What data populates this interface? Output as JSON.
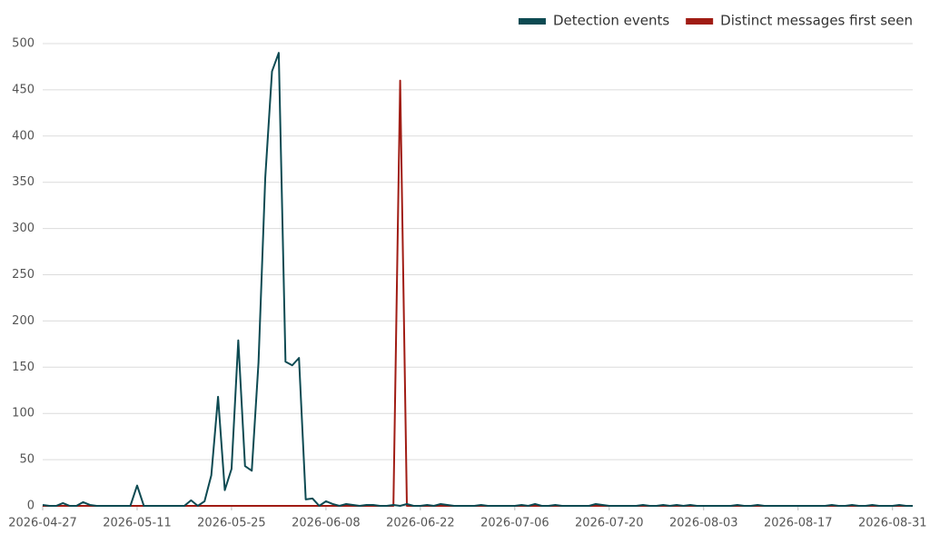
{
  "chart_data": {
    "type": "line",
    "x": [
      "2026-04-27",
      "2026-04-28",
      "2026-04-29",
      "2026-04-30",
      "2026-05-01",
      "2026-05-02",
      "2026-05-03",
      "2026-05-04",
      "2026-05-05",
      "2026-05-06",
      "2026-05-07",
      "2026-05-08",
      "2026-05-09",
      "2026-05-10",
      "2026-05-11",
      "2026-05-12",
      "2026-05-13",
      "2026-05-14",
      "2026-05-15",
      "2026-05-16",
      "2026-05-17",
      "2026-05-18",
      "2026-05-19",
      "2026-05-20",
      "2026-05-21",
      "2026-05-22",
      "2026-05-23",
      "2026-05-24",
      "2026-05-25",
      "2026-05-26",
      "2026-05-27",
      "2026-05-28",
      "2026-05-29",
      "2026-05-30",
      "2026-05-31",
      "2026-06-01",
      "2026-06-02",
      "2026-06-03",
      "2026-06-04",
      "2026-06-05",
      "2026-06-06",
      "2026-06-07",
      "2026-06-08",
      "2026-06-09",
      "2026-06-10",
      "2026-06-11",
      "2026-06-12",
      "2026-06-13",
      "2026-06-14",
      "2026-06-15",
      "2026-06-16",
      "2026-06-17",
      "2026-06-18",
      "2026-06-19",
      "2026-06-20",
      "2026-06-21",
      "2026-06-22",
      "2026-06-23",
      "2026-06-24",
      "2026-06-25",
      "2026-06-26",
      "2026-06-27",
      "2026-06-28",
      "2026-06-29",
      "2026-06-30",
      "2026-07-01",
      "2026-07-02",
      "2026-07-03",
      "2026-07-04",
      "2026-07-05",
      "2026-07-06",
      "2026-07-07",
      "2026-07-08",
      "2026-07-09",
      "2026-07-10",
      "2026-07-11",
      "2026-07-12",
      "2026-07-13",
      "2026-07-14",
      "2026-07-15",
      "2026-07-16",
      "2026-07-17",
      "2026-07-18",
      "2026-07-19",
      "2026-07-20",
      "2026-07-21",
      "2026-07-22",
      "2026-07-23",
      "2026-07-24",
      "2026-07-25",
      "2026-07-26",
      "2026-07-27",
      "2026-07-28",
      "2026-07-29",
      "2026-07-30",
      "2026-07-31",
      "2026-08-01",
      "2026-08-02",
      "2026-08-03",
      "2026-08-04",
      "2026-08-05",
      "2026-08-06",
      "2026-08-07",
      "2026-08-08",
      "2026-08-09",
      "2026-08-10",
      "2026-08-11",
      "2026-08-12",
      "2026-08-13",
      "2026-08-14",
      "2026-08-15",
      "2026-08-16",
      "2026-08-17",
      "2026-08-18",
      "2026-08-19",
      "2026-08-20",
      "2026-08-21",
      "2026-08-22",
      "2026-08-23",
      "2026-08-24",
      "2026-08-25",
      "2026-08-26",
      "2026-08-27",
      "2026-08-28",
      "2026-08-29",
      "2026-08-30",
      "2026-08-31",
      "2026-09-01",
      "2026-09-02",
      "2026-09-03"
    ],
    "series": [
      {
        "name": "Detection events",
        "color": "#0d4a52",
        "values": [
          1,
          0,
          0,
          3,
          0,
          0,
          4,
          1,
          0,
          0,
          0,
          0,
          0,
          0,
          22,
          0,
          0,
          0,
          0,
          0,
          0,
          0,
          6,
          0,
          5,
          33,
          118,
          17,
          40,
          179,
          43,
          38,
          155,
          355,
          470,
          490,
          156,
          152,
          160,
          7,
          8,
          0,
          5,
          2,
          0,
          2,
          1,
          0,
          1,
          1,
          0,
          0,
          1,
          0,
          2,
          0,
          0,
          1,
          0,
          2,
          1,
          0,
          0,
          0,
          0,
          1,
          0,
          0,
          0,
          0,
          0,
          1,
          0,
          2,
          0,
          0,
          1,
          0,
          0,
          0,
          0,
          0,
          2,
          1,
          0,
          0,
          0,
          0,
          0,
          1,
          0,
          0,
          1,
          0,
          1,
          0,
          1,
          0,
          0,
          0,
          0,
          0,
          0,
          1,
          0,
          0,
          1,
          0,
          0,
          0,
          0,
          0,
          0,
          0,
          0,
          0,
          0,
          1,
          0,
          0,
          1,
          0,
          0,
          1,
          0,
          0,
          0,
          1,
          0,
          0
        ]
      },
      {
        "name": "Distinct messages first seen",
        "color": "#a01c14",
        "values": [
          0,
          0,
          0,
          0,
          0,
          0,
          0,
          0,
          0,
          0,
          0,
          0,
          0,
          0,
          0,
          0,
          0,
          0,
          0,
          0,
          0,
          0,
          0,
          0,
          0,
          0,
          0,
          0,
          0,
          0,
          0,
          0,
          0,
          0,
          0,
          0,
          0,
          0,
          0,
          0,
          0,
          0,
          0,
          0,
          0,
          0,
          0,
          0,
          0,
          0,
          0,
          0,
          0,
          460,
          0,
          0,
          0,
          0,
          0,
          0,
          0,
          0,
          0,
          0,
          0,
          0,
          0,
          0,
          0,
          0,
          0,
          0,
          0,
          0,
          0,
          0,
          0,
          0,
          0,
          0,
          0,
          0,
          0,
          0,
          0,
          0,
          0,
          0,
          0,
          0,
          0,
          0,
          0,
          0,
          0,
          0,
          0,
          0,
          0,
          0,
          0,
          0,
          0,
          0,
          0,
          0,
          0,
          0,
          0,
          0,
          0,
          0,
          0,
          0,
          0,
          0,
          0,
          0,
          0,
          0,
          0,
          0,
          0,
          0,
          0,
          0,
          0,
          0,
          0,
          0
        ]
      }
    ],
    "xticks": [
      "2026-04-27",
      "2026-05-11",
      "2026-05-25",
      "2026-06-08",
      "2026-06-22",
      "2026-07-06",
      "2026-07-20",
      "2026-08-03",
      "2026-08-17",
      "2026-08-31"
    ],
    "ylim": [
      0,
      500
    ],
    "yticks": [
      0,
      50,
      100,
      150,
      200,
      250,
      300,
      350,
      400,
      450,
      500
    ],
    "grid": true,
    "legend": "top-right"
  }
}
